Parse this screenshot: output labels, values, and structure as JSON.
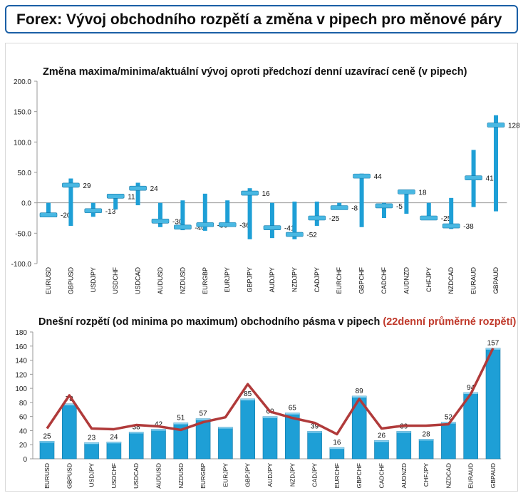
{
  "header": {
    "title": "Forex: Vývoj obchodního rozpětí a změna v pipech pro měnové páry"
  },
  "chart_data": [
    {
      "type": "bar",
      "title": "Změna maxima/minima/aktuální vývoj oproti předchozí denní uzavírací ceně (v pipech)",
      "categories": [
        "EURUSD",
        "GBPUSD",
        "USDJPY",
        "USDCHF",
        "USDCAD",
        "AUDUSD",
        "NZDUSD",
        "EURGBP",
        "EURJPY",
        "GBPJPY",
        "AUDJPY",
        "NZDJPY",
        "CADJPY",
        "EURCHF",
        "GBPCHF",
        "CADCHF",
        "AUDNZD",
        "CHFJPY",
        "NZDCAD",
        "EURAUD",
        "GBPAUD"
      ],
      "series": [
        {
          "role": "high",
          "values": [
            0,
            40,
            0,
            14,
            33,
            0,
            4,
            15,
            4,
            24,
            0,
            2,
            2,
            0,
            48,
            0,
            19,
            0,
            8,
            87,
            144
          ]
        },
        {
          "role": "low",
          "values": [
            -22,
            -38,
            -23,
            -11,
            -4,
            -40,
            -45,
            -46,
            -38,
            -60,
            -58,
            -60,
            -38,
            -10,
            -40,
            -25,
            -18,
            -25,
            -43,
            -7,
            -14
          ]
        },
        {
          "role": "current",
          "values": [
            -20,
            29,
            -13,
            11,
            24,
            -30,
            -40,
            -36,
            -36,
            16,
            -41,
            -52,
            -25,
            -8,
            44,
            -5,
            18,
            -25,
            -38,
            41,
            128
          ]
        }
      ],
      "labels": [
        "-20",
        "29",
        "-13",
        "11",
        "24",
        "-30",
        "-40",
        "-36",
        "-36",
        "16",
        "-41",
        "-52",
        "-25",
        "-8",
        "44",
        "-5",
        "18",
        "-25",
        "-38",
        "41",
        "128"
      ],
      "ylim": [
        -100,
        200
      ],
      "yticks": [
        "200.0",
        "150.0",
        "100.0",
        "50.0",
        "0.0",
        "-50.0",
        "-100.0"
      ],
      "colors": {
        "bar": "#1e9fd6",
        "marker": "#49b8e3"
      }
    },
    {
      "type": "bar",
      "title": "Dnešní rozpětí (od minima po maximum) obchodního pásma v pipech",
      "title_highlight": "(22denní průměrné rozpětí)",
      "categories": [
        "EURUSD",
        "GBPUSD",
        "USDJPY",
        "USDCHF",
        "USDCAD",
        "AUDUSD",
        "NZDUSD",
        "EURGBP",
        "EURJPY",
        "GBPJPY",
        "AUDJPY",
        "NZDJPY",
        "CADJPY",
        "EURCHF",
        "GBPCHF",
        "CADCHF",
        "AUDNZD",
        "CHFJPY",
        "NZDCAD",
        "EURAUD",
        "GBPAUD"
      ],
      "series": [
        {
          "role": "range",
          "values": [
            25,
            78,
            23,
            24,
            38,
            42,
            51,
            57,
            45,
            85,
            60,
            65,
            39,
            16,
            89,
            26,
            39,
            28,
            52,
            94,
            157
          ]
        },
        {
          "role": "average-22d",
          "values": [
            43,
            90,
            43,
            42,
            48,
            46,
            41,
            52,
            59,
            106,
            67,
            58,
            51,
            35,
            85,
            43,
            47,
            47,
            49,
            92,
            157
          ]
        }
      ],
      "labels": [
        "25",
        "78",
        "23",
        "24",
        "38",
        "42",
        "51",
        "57",
        "",
        "85",
        "60",
        "65",
        "39",
        "16",
        "89",
        "26",
        "39",
        "28",
        "52",
        "94",
        "157"
      ],
      "ylim": [
        0,
        180
      ],
      "yticks": [
        "180",
        "160",
        "140",
        "120",
        "100",
        "80",
        "60",
        "40",
        "20",
        "0"
      ],
      "colors": {
        "bar": "#1e9fd6",
        "line": "#b03a3a"
      }
    }
  ]
}
